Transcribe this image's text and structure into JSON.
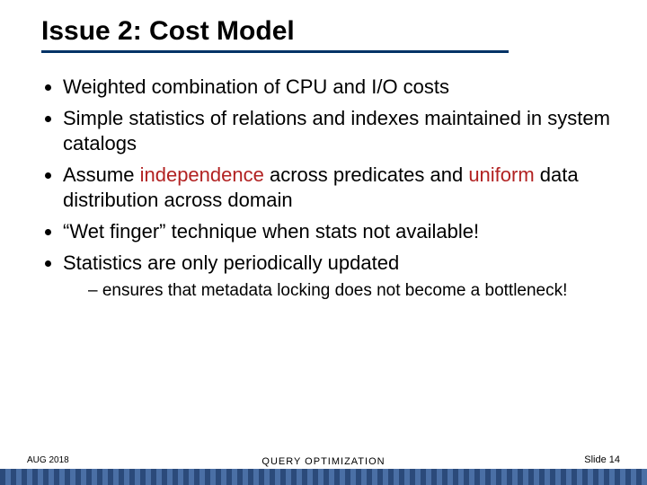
{
  "title": "Issue 2: Cost Model",
  "rule_color": "#003366",
  "bullets": {
    "b1": "Weighted combination  of CPU and I/O costs",
    "b2": "Simple statistics of relations and indexes maintained in system catalogs",
    "b3_pre": "Assume ",
    "b3_hl1": "independence",
    "b3_mid": " across predicates and ",
    "b3_hl2": "uniform",
    "b3_post": " data distribution across domain",
    "b4": "“Wet finger” technique when stats not available!",
    "b5": "Statistics are only periodically updated",
    "b5_sub": "ensures that metadata locking does not become a bottleneck!"
  },
  "footer": {
    "date": "AUG 2018",
    "center": "QUERY  OPTIMIZATION",
    "slide": "Slide 14"
  },
  "colors": {
    "highlight": "#b22222",
    "band_dark": "#2b4a7a",
    "band_light": "#4a6fa5",
    "text": "#000000",
    "bg": "#ffffff"
  },
  "fontsizes": {
    "title": 30,
    "bullet": 22,
    "sub": 19,
    "footer_small": 10,
    "footer": 11
  }
}
